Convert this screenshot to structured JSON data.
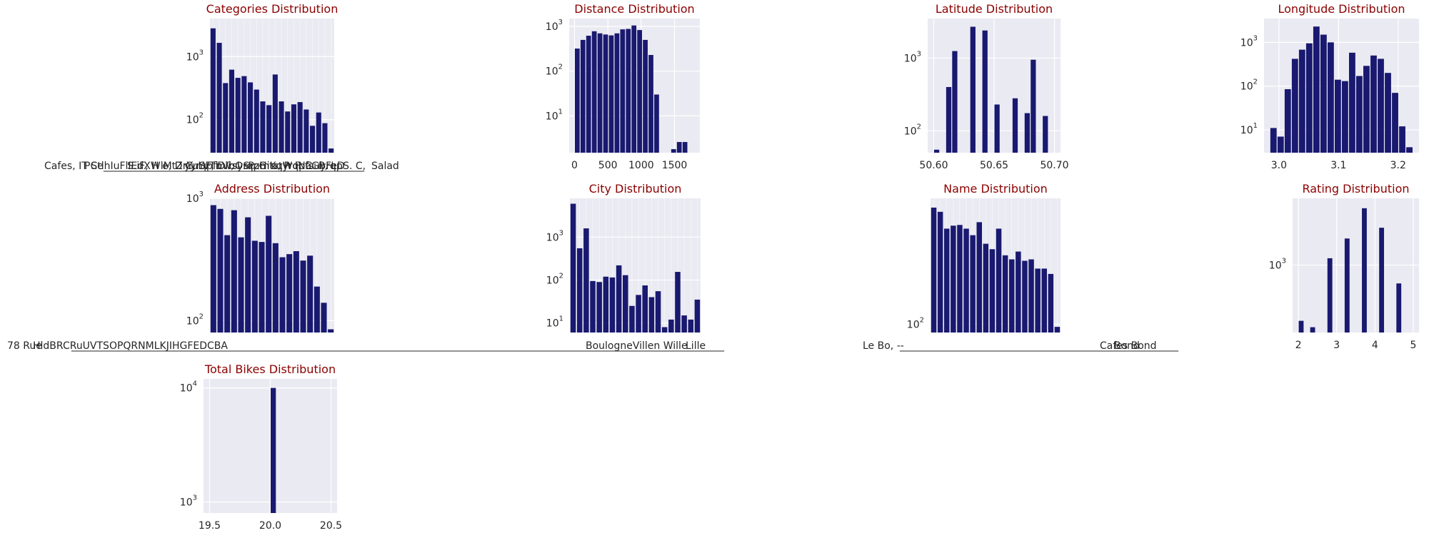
{
  "colors": {
    "bar": "#191970",
    "panel_bg": "#eaeaf2",
    "grid": "#ffffff",
    "title": "#8b0000",
    "text": "#262626"
  },
  "chart_data": [
    {
      "id": "categories",
      "type": "bar",
      "title": "Categories Distribution",
      "yscale": "log",
      "ylim": [
        30,
        4000
      ],
      "yticks": [
        100,
        1000
      ],
      "grid": true,
      "values": [
        2800,
        1650,
        380,
        620,
        460,
        490,
        390,
        300,
        195,
        170,
        520,
        195,
        135,
        175,
        190,
        145,
        80,
        130,
        88,
        35
      ],
      "xtick_labels": [
        "Cafes, IT Services",
        "...",
        "...",
        "Salad"
      ]
    },
    {
      "id": "distance",
      "type": "bar",
      "title": "Distance Distribution",
      "yscale": "log",
      "ylim": [
        1.5,
        1500
      ],
      "yticks": [
        10,
        100,
        1000
      ],
      "grid": true,
      "xlim": [
        -80,
        1880
      ],
      "xticks": [
        0,
        500,
        1000,
        1500
      ],
      "bin_edges": [
        0,
        85,
        170,
        255,
        340,
        425,
        510,
        595,
        680,
        765,
        850,
        935,
        1020,
        1105,
        1190,
        1275,
        1360,
        1445,
        1530,
        1615,
        1700,
        1785
      ],
      "values": [
        320,
        500,
        620,
        780,
        700,
        660,
        630,
        700,
        860,
        880,
        1050,
        830,
        500,
        230,
        30,
        1,
        1,
        1.8,
        2.6,
        2.6,
        1
      ]
    },
    {
      "id": "latitude",
      "type": "bar",
      "title": "Latitude Distribution",
      "yscale": "log",
      "ylim": [
        50,
        3500
      ],
      "yticks": [
        100,
        1000
      ],
      "grid": true,
      "xlim": [
        50.595,
        50.705
      ],
      "xticks": [
        50.6,
        50.65,
        50.7
      ],
      "bin_edges": [
        50.6,
        50.605,
        50.61,
        50.615,
        50.62,
        50.625,
        50.63,
        50.635,
        50.64,
        50.645,
        50.65,
        50.655,
        50.66,
        50.665,
        50.67,
        50.675,
        50.68,
        50.685,
        50.69,
        50.695,
        50.7
      ],
      "values": [
        55,
        40,
        400,
        1250,
        40,
        40,
        2700,
        40,
        2400,
        40,
        230,
        40,
        40,
        280,
        40,
        175,
        950,
        40,
        160,
        40
      ]
    },
    {
      "id": "longitude",
      "type": "bar",
      "title": "Longitude Distribution",
      "yscale": "log",
      "ylim": [
        3,
        3500
      ],
      "yticks": [
        10,
        100,
        1000
      ],
      "grid": true,
      "xlim": [
        2.975,
        3.235
      ],
      "xticks": [
        3.0,
        3.1,
        3.2
      ],
      "bin_edges": [
        2.985,
        2.997,
        3.009,
        3.021,
        3.033,
        3.045,
        3.057,
        3.069,
        3.081,
        3.093,
        3.105,
        3.117,
        3.129,
        3.141,
        3.153,
        3.165,
        3.177,
        3.189,
        3.201,
        3.213,
        3.225
      ],
      "values": [
        11,
        7,
        85,
        420,
        680,
        950,
        2300,
        1500,
        1000,
        140,
        130,
        580,
        170,
        290,
        500,
        420,
        200,
        70,
        12,
        4
      ]
    },
    {
      "id": "address",
      "type": "bar",
      "title": "Address Distribution",
      "yscale": "log",
      "ylim": [
        80,
        1000
      ],
      "yticks": [
        100,
        1000
      ],
      "grid": true,
      "values": [
        880,
        820,
        500,
        800,
        480,
        700,
        450,
        440,
        720,
        430,
        330,
        350,
        370,
        310,
        340,
        190,
        140,
        85
      ],
      "xtick_labels": [
        "78 Rue ...",
        "...",
        "..."
      ]
    },
    {
      "id": "city",
      "type": "bar",
      "title": "City Distribution",
      "yscale": "log",
      "ylim": [
        6,
        8000
      ],
      "yticks": [
        10,
        100,
        1000
      ],
      "grid": true,
      "values": [
        6000,
        550,
        1600,
        95,
        90,
        120,
        115,
        220,
        130,
        25,
        45,
        75,
        40,
        55,
        8,
        12,
        155,
        15,
        12,
        35
      ],
      "xtick_labels": [
        "...",
        "...",
        "...",
        "Lille"
      ]
    },
    {
      "id": "name",
      "type": "bar",
      "title": "Name Distribution",
      "yscale": "log",
      "ylim": [
        85,
        1200
      ],
      "yticks": [
        100
      ],
      "grid": true,
      "values": [
        1000,
        920,
        660,
        700,
        710,
        660,
        580,
        750,
        490,
        440,
        660,
        390,
        360,
        420,
        350,
        360,
        300,
        300,
        270,
        95
      ],
      "xtick_labels": [
        "Le ...",
        "...",
        "Bond"
      ]
    },
    {
      "id": "rating",
      "type": "bar",
      "title": "Rating Distribution",
      "yscale": "log",
      "ylim": [
        330,
        3000
      ],
      "yticks": [
        1000
      ],
      "grid": true,
      "xlim": [
        1.85,
        5.15
      ],
      "xticks": [
        2,
        3,
        4,
        5
      ],
      "bin_edges": [
        2.0,
        2.15,
        2.3,
        2.45,
        2.6,
        2.75,
        2.9,
        3.05,
        3.2,
        3.35,
        3.5,
        3.65,
        3.8,
        3.95,
        4.1,
        4.25,
        4.4,
        4.55,
        4.7,
        4.85,
        5.0
      ],
      "values": [
        400,
        1,
        360,
        1,
        1,
        1120,
        1,
        1,
        1550,
        1,
        1,
        2550,
        1,
        1,
        1850,
        1,
        1,
        740,
        1,
        1
      ]
    },
    {
      "id": "total_bikes",
      "type": "bar",
      "title": "Total Bikes Distribution",
      "yscale": "log",
      "ylim": [
        800,
        12000
      ],
      "yticks": [
        1000,
        10000
      ],
      "grid": true,
      "xlim": [
        19.45,
        20.55
      ],
      "xticks": [
        19.5,
        20.0,
        20.5
      ],
      "bin_edges": [
        20.0,
        20.05
      ],
      "values": [
        10000
      ]
    }
  ]
}
